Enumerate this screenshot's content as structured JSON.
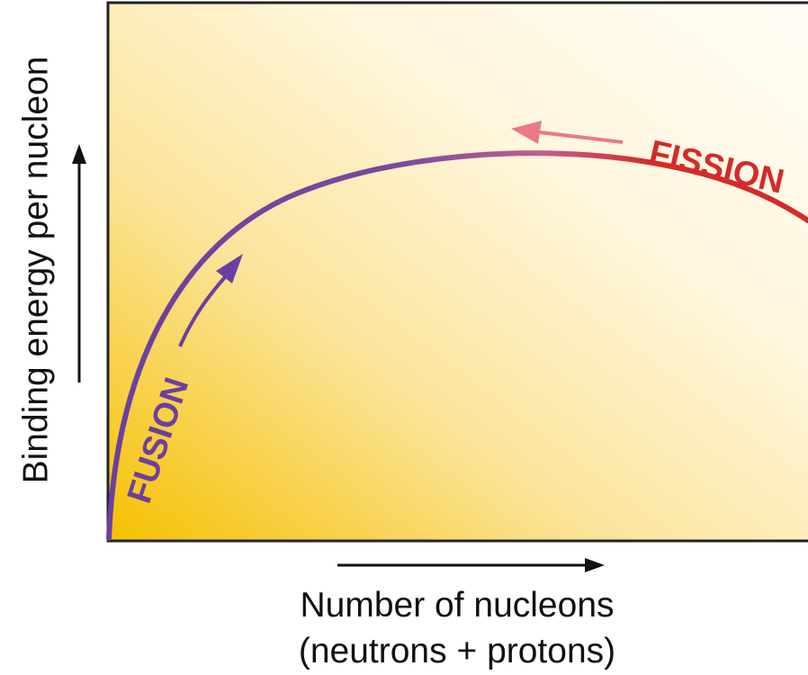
{
  "diagram": {
    "ylabel": "Binding energy per nucleon",
    "xlabel_line1": "Number of nucleons",
    "xlabel_line2": "(neutrons + protons)",
    "fusion_label": "FUSION",
    "fission_label": "FISSION",
    "colors": {
      "fusion": "#6b3fa0",
      "fission": "#d42a2a",
      "fission_arrow": "#ea7a86",
      "background_warm": "#f5c000",
      "background_light": "#fffdf4",
      "frame": "#222222"
    }
  }
}
